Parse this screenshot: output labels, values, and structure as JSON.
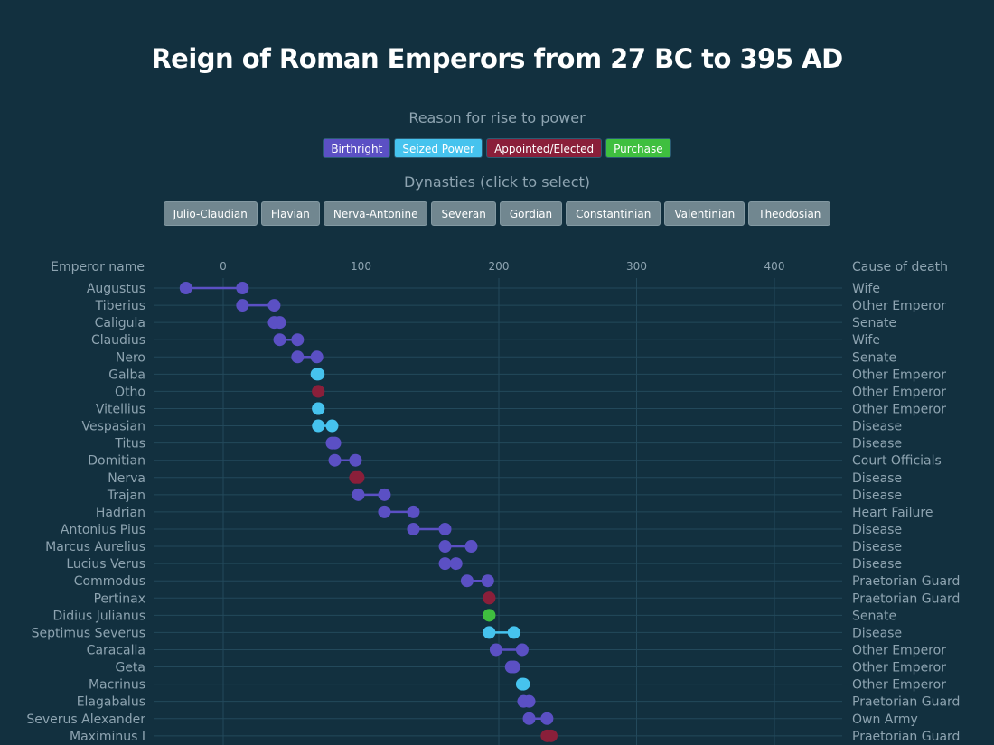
{
  "title": "Reign of Roman Emperors from 27 BC to 395 AD",
  "rise_legend": {
    "label": "Reason for rise to power",
    "items": [
      {
        "label": "Birthright",
        "color": "#5b50c4"
      },
      {
        "label": "Seized Power",
        "color": "#46c3ee"
      },
      {
        "label": "Appointed/Elected",
        "color": "#8a1f3a"
      },
      {
        "label": "Purchase",
        "color": "#3fbf3f"
      }
    ]
  },
  "dynasties": {
    "label": "Dynasties (click to select)",
    "items": [
      "Julio-Claudian",
      "Flavian",
      "Nerva-Antonine",
      "Severan",
      "Gordian",
      "Constantinian",
      "Valentinian",
      "Theodosian"
    ]
  },
  "chart_data": {
    "type": "dumbbell",
    "left_header": "Emperor name",
    "right_header": "Cause of death",
    "x_ticks": [
      0,
      100,
      200,
      300,
      400
    ],
    "xlim": [
      -45,
      450
    ],
    "grid": true,
    "rows": [
      {
        "name": "Augustus",
        "start": -27,
        "end": 14,
        "rise": "Birthright",
        "cause": "Wife"
      },
      {
        "name": "Tiberius",
        "start": 14,
        "end": 37,
        "rise": "Birthright",
        "cause": "Other Emperor"
      },
      {
        "name": "Caligula",
        "start": 37,
        "end": 41,
        "rise": "Birthright",
        "cause": "Senate"
      },
      {
        "name": "Claudius",
        "start": 41,
        "end": 54,
        "rise": "Birthright",
        "cause": "Wife"
      },
      {
        "name": "Nero",
        "start": 54,
        "end": 68,
        "rise": "Birthright",
        "cause": "Senate"
      },
      {
        "name": "Galba",
        "start": 68,
        "end": 69,
        "rise": "Seized Power",
        "cause": "Other Emperor"
      },
      {
        "name": "Otho",
        "start": 69,
        "end": 69,
        "rise": "Appointed/Elected",
        "cause": "Other Emperor"
      },
      {
        "name": "Vitellius",
        "start": 69,
        "end": 69,
        "rise": "Seized Power",
        "cause": "Other Emperor"
      },
      {
        "name": "Vespasian",
        "start": 69,
        "end": 79,
        "rise": "Seized Power",
        "cause": "Disease"
      },
      {
        "name": "Titus",
        "start": 79,
        "end": 81,
        "rise": "Birthright",
        "cause": "Disease"
      },
      {
        "name": "Domitian",
        "start": 81,
        "end": 96,
        "rise": "Birthright",
        "cause": "Court Officials"
      },
      {
        "name": "Nerva",
        "start": 96,
        "end": 98,
        "rise": "Appointed/Elected",
        "cause": "Disease"
      },
      {
        "name": "Trajan",
        "start": 98,
        "end": 117,
        "rise": "Birthright",
        "cause": "Disease"
      },
      {
        "name": "Hadrian",
        "start": 117,
        "end": 138,
        "rise": "Birthright",
        "cause": "Heart Failure"
      },
      {
        "name": "Antonius Pius",
        "start": 138,
        "end": 161,
        "rise": "Birthright",
        "cause": "Disease"
      },
      {
        "name": "Marcus Aurelius",
        "start": 161,
        "end": 180,
        "rise": "Birthright",
        "cause": "Disease"
      },
      {
        "name": "Lucius Verus",
        "start": 161,
        "end": 169,
        "rise": "Birthright",
        "cause": "Disease"
      },
      {
        "name": "Commodus",
        "start": 177,
        "end": 192,
        "rise": "Birthright",
        "cause": "Praetorian Guard"
      },
      {
        "name": "Pertinax",
        "start": 193,
        "end": 193,
        "rise": "Appointed/Elected",
        "cause": "Praetorian Guard"
      },
      {
        "name": "Didius Julianus",
        "start": 193,
        "end": 193,
        "rise": "Purchase",
        "cause": "Senate"
      },
      {
        "name": "Septimus Severus",
        "start": 193,
        "end": 211,
        "rise": "Seized Power",
        "cause": "Disease"
      },
      {
        "name": "Caracalla",
        "start": 198,
        "end": 217,
        "rise": "Birthright",
        "cause": "Other Emperor"
      },
      {
        "name": "Geta",
        "start": 209,
        "end": 211,
        "rise": "Birthright",
        "cause": "Other Emperor"
      },
      {
        "name": "Macrinus",
        "start": 217,
        "end": 218,
        "rise": "Seized Power",
        "cause": "Other Emperor"
      },
      {
        "name": "Elagabalus",
        "start": 218,
        "end": 222,
        "rise": "Birthright",
        "cause": "Praetorian Guard"
      },
      {
        "name": "Severus Alexander",
        "start": 222,
        "end": 235,
        "rise": "Birthright",
        "cause": "Own Army"
      },
      {
        "name": "Maximinus I",
        "start": 235,
        "end": 238,
        "rise": "Appointed/Elected",
        "cause": "Praetorian Guard"
      }
    ]
  }
}
